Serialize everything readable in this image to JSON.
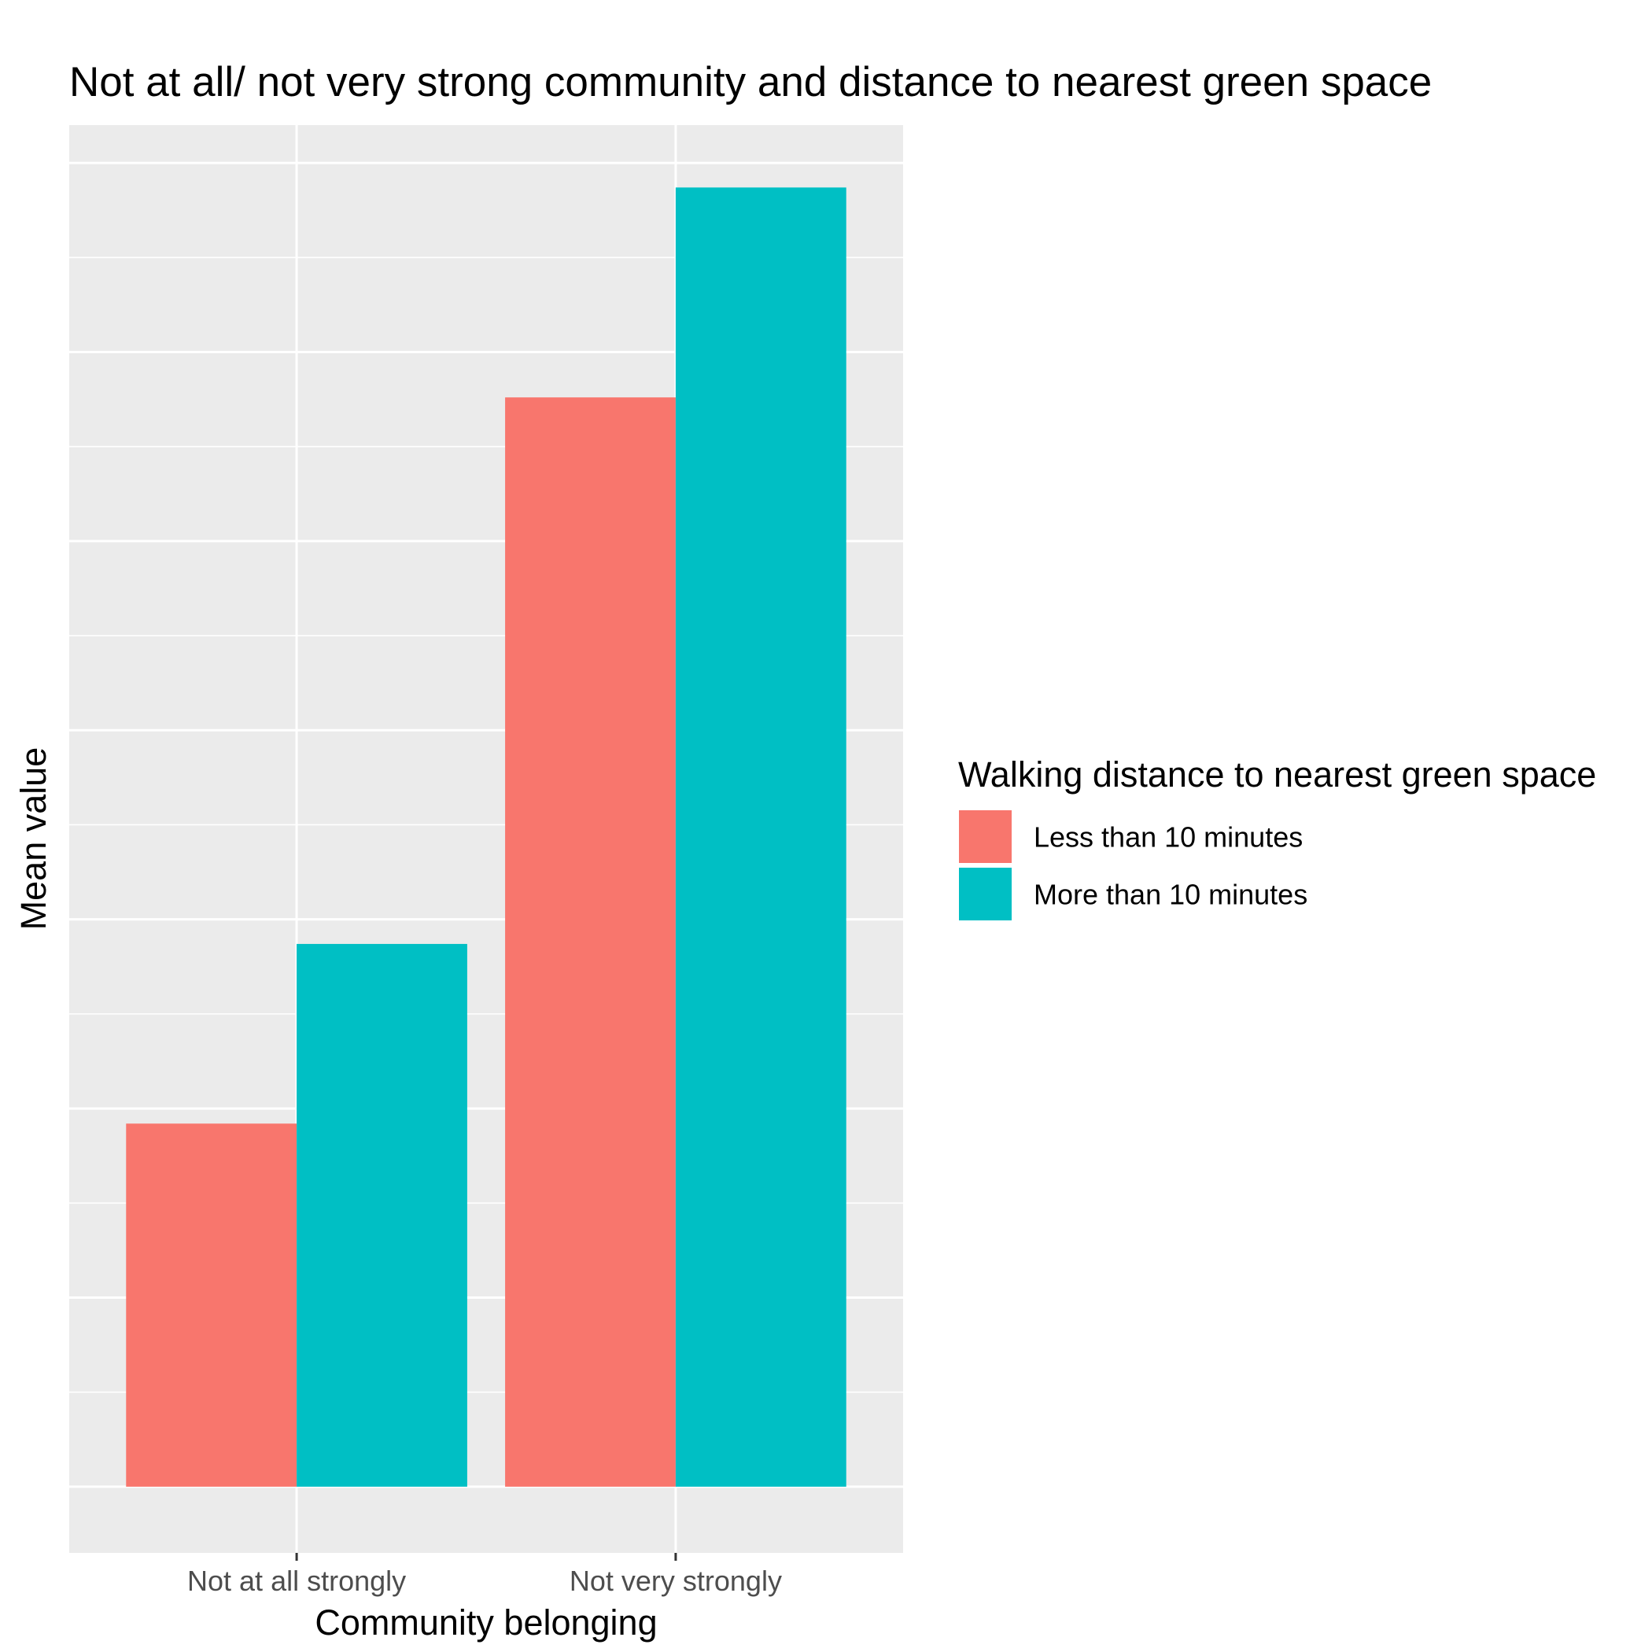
{
  "chart_data": {
    "type": "bar",
    "title": "Not at all/ not very strong community and distance to nearest green space",
    "xlabel": "Community belonging",
    "ylabel": "Mean value",
    "categories": [
      "Not at all strongly",
      "Not very strongly"
    ],
    "series": [
      {
        "name": "Less than 10 minutes",
        "color": "#F8766D",
        "values": [
          1.92,
          5.76
        ]
      },
      {
        "name": "More than 10 minutes",
        "color": "#00BFC4",
        "values": [
          2.87,
          6.87
        ]
      }
    ],
    "ylim": [
      -0.35,
      7.2
    ],
    "y_gridlines": [
      0,
      1,
      2,
      3,
      4,
      5,
      6,
      7
    ],
    "y_tick_labels_shown": false,
    "grid": true,
    "background": "#EBEBEB",
    "legend": {
      "title": "Walking distance to nearest green space",
      "position": "right"
    }
  }
}
